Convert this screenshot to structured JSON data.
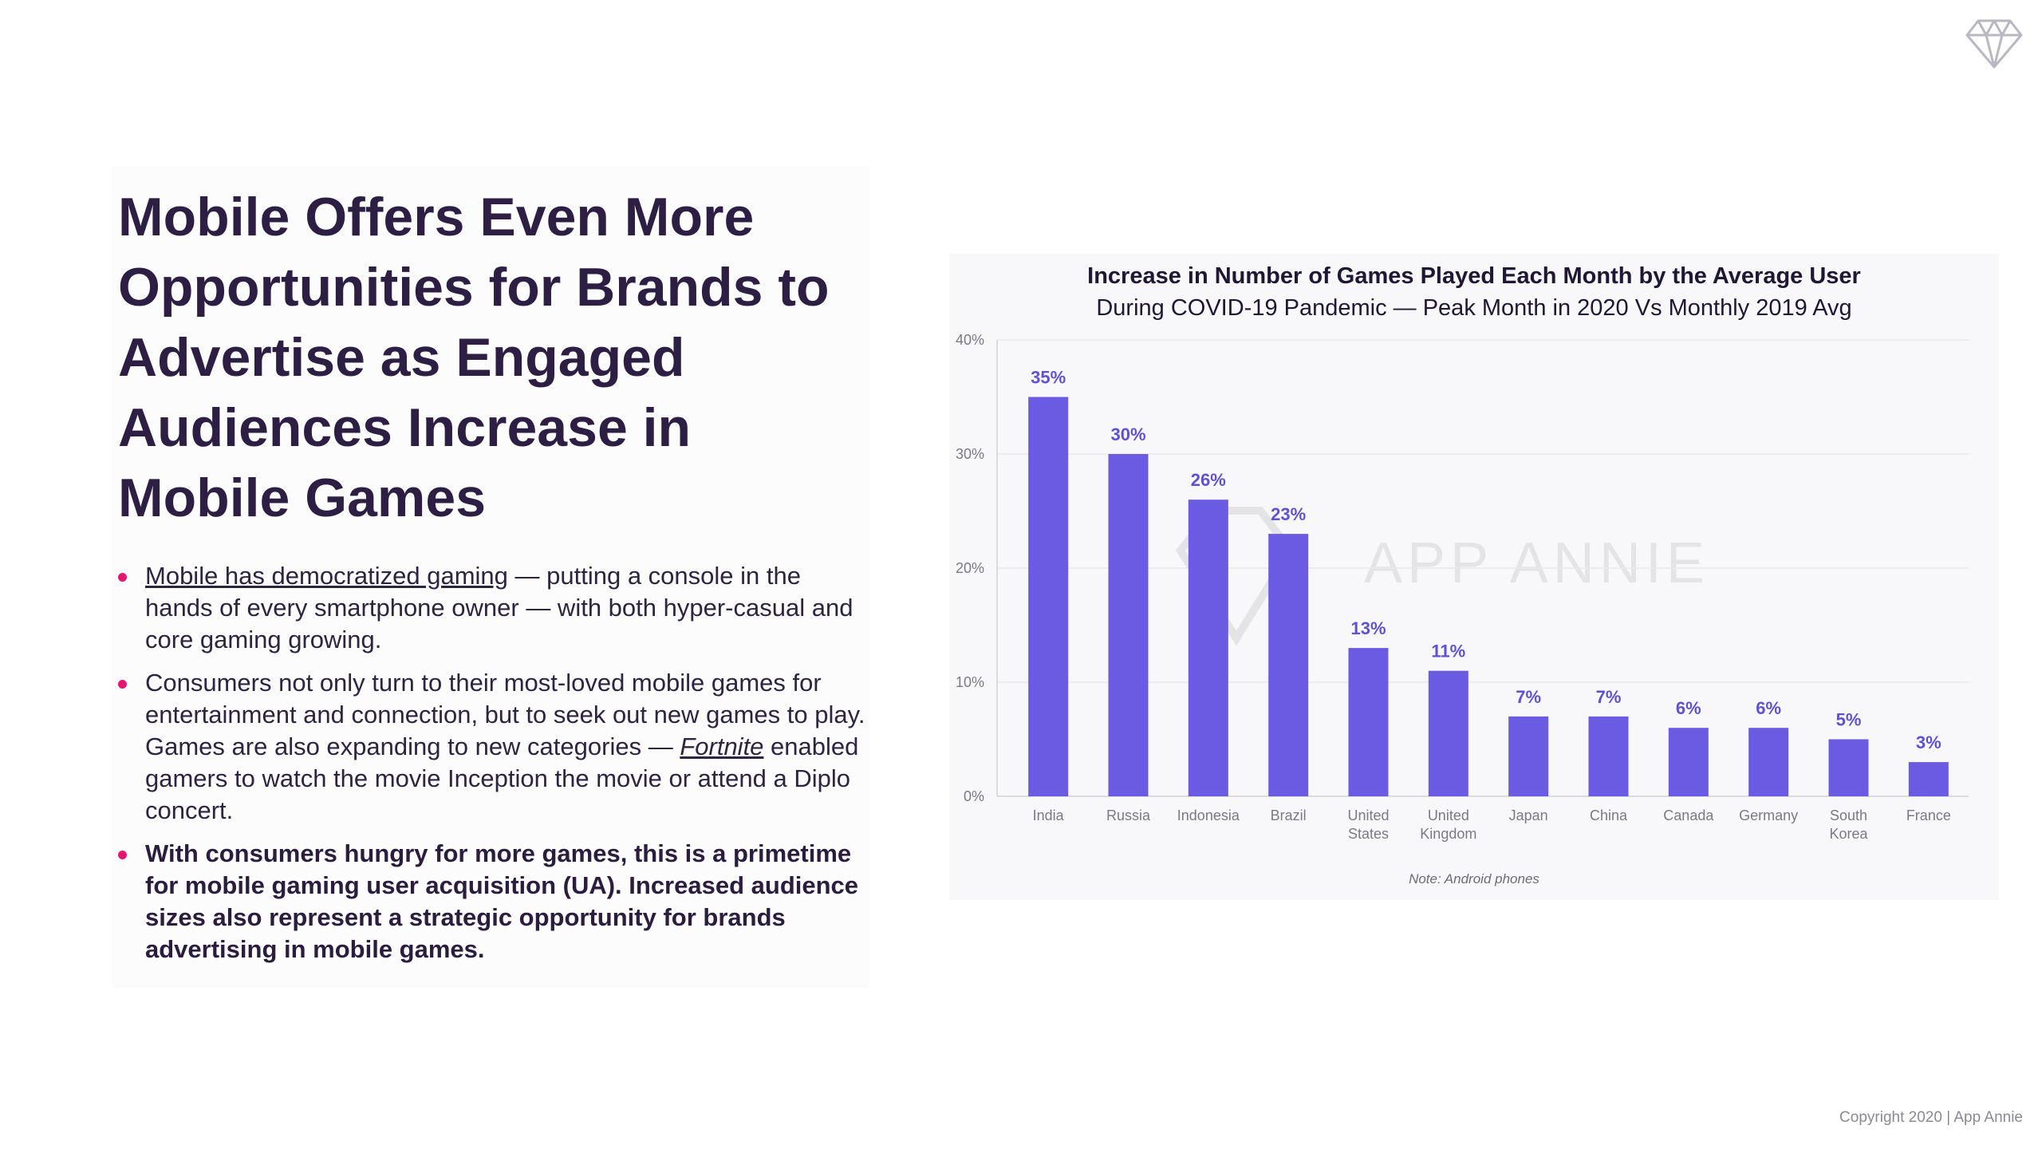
{
  "headline": "Mobile Offers Even More Opportunities for Brands to Advertise as Engaged Audiences Increase in Mobile Games",
  "bullets": [
    {
      "link_text": "Mobile has democratized gaming",
      "text": " — putting a console in the hands of every smartphone owner — with both hyper-casual and core gaming growing."
    },
    {
      "text_before": "Consumers not only turn to their most-loved mobile games for entertainment and connection, but to seek out new games to play. Games are also expanding to new categories — ",
      "link_text": "Fortnite",
      "text_after": " enabled gamers to watch the movie Inception the movie or attend a Diplo concert."
    },
    {
      "text": "With consumers hungry for more games, this is a primetime for mobile gaming user acquisition (UA). Increased audience sizes also represent a strategic opportunity for brands advertising in mobile games."
    }
  ],
  "chart_data": {
    "type": "bar",
    "title": "Increase in Number of Games Played Each Month by the Average User",
    "subtitle": "During COVID-19 Pandemic — Peak Month in 2020 Vs Monthly 2019 Avg",
    "categories": [
      "India",
      "Russia",
      "Indonesia",
      "Brazil",
      "United States",
      "United Kingdom",
      "Japan",
      "China",
      "Canada",
      "Germany",
      "South Korea",
      "France"
    ],
    "category_lines": [
      [
        "India"
      ],
      [
        "Russia"
      ],
      [
        "Indonesia"
      ],
      [
        "Brazil"
      ],
      [
        "United",
        "States"
      ],
      [
        "United",
        "Kingdom"
      ],
      [
        "Japan"
      ],
      [
        "China"
      ],
      [
        "Canada"
      ],
      [
        "Germany"
      ],
      [
        "South",
        "Korea"
      ],
      [
        "France"
      ]
    ],
    "values": [
      35,
      30,
      26,
      23,
      13,
      11,
      7,
      7,
      6,
      6,
      5,
      3
    ],
    "data_labels": [
      "35%",
      "30%",
      "26%",
      "23%",
      "13%",
      "11%",
      "7%",
      "7%",
      "6%",
      "6%",
      "5%",
      "3%"
    ],
    "ylim": [
      0,
      40
    ],
    "yticks": [
      0,
      10,
      20,
      30,
      40
    ],
    "ytick_labels": [
      "0%",
      "10%",
      "20%",
      "30%",
      "40%"
    ],
    "xlabel": "",
    "ylabel": "",
    "grid": true,
    "bar_color": "#6a5be2",
    "label_color": "#5e52d4",
    "watermark": "APP ANNIE",
    "note": "Note: Android phones"
  },
  "colors": {
    "headline": "#2d1f43",
    "bullet_dot": "#e5166f"
  },
  "copyright": "Copyright 2020 | App Annie"
}
